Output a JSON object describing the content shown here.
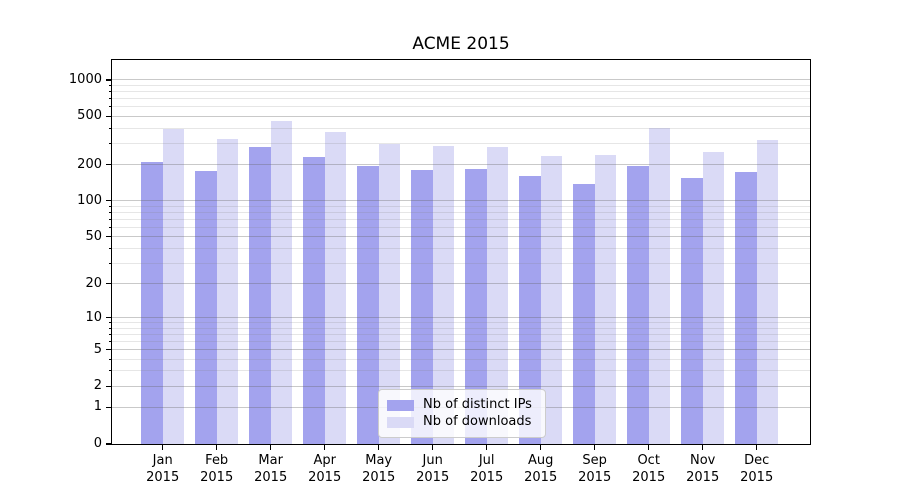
{
  "title": "ACME 2015",
  "colors": {
    "bar_ips": "#a3a3ee",
    "bar_downloads": "#dadaf6",
    "grid_major": "rgba(100,100,100,0.35)",
    "grid_minor": "rgba(128,128,128,0.20)",
    "axis": "#000000",
    "legend_border": "#cccccc",
    "background": "#ffffff"
  },
  "legend": {
    "position": "lower center",
    "items": [
      {
        "label": "Nb of distinct IPs",
        "color_key": "bar_ips"
      },
      {
        "label": "Nb of downloads",
        "color_key": "bar_downloads"
      }
    ]
  },
  "chart_data": {
    "type": "bar",
    "title": "ACME 2015",
    "categories": [
      "Jan 2015",
      "Feb 2015",
      "Mar 2015",
      "Apr 2015",
      "May 2015",
      "Jun 2015",
      "Jul 2015",
      "Aug 2015",
      "Sep 2015",
      "Oct 2015",
      "Nov 2015",
      "Dec 2015"
    ],
    "series": [
      {
        "name": "Nb of distinct IPs",
        "values": [
          210,
          178,
          278,
          229,
          196,
          181,
          185,
          162,
          138,
          196,
          154,
          175
        ]
      },
      {
        "name": "Nb of downloads",
        "values": [
          395,
          327,
          460,
          375,
          293,
          284,
          278,
          235,
          241,
          403,
          253,
          320
        ]
      }
    ],
    "xlabel": "",
    "ylabel": "",
    "yscale": "symlog-log1p",
    "ylim": [
      0,
      1460
    ],
    "yticks": [
      0,
      1,
      2,
      5,
      10,
      20,
      50,
      100,
      200,
      500,
      1000
    ],
    "ytick_labels": [
      "0",
      "1",
      "2",
      "5",
      "10",
      "20",
      "50",
      "100",
      "200",
      "500",
      "1000"
    ],
    "minor_yticks": [
      3,
      4,
      6,
      7,
      8,
      9,
      30,
      40,
      60,
      70,
      80,
      90,
      300,
      400,
      600,
      700,
      800,
      900
    ],
    "grid": true,
    "grid_above_bars": true,
    "legend_position": "lower center"
  }
}
